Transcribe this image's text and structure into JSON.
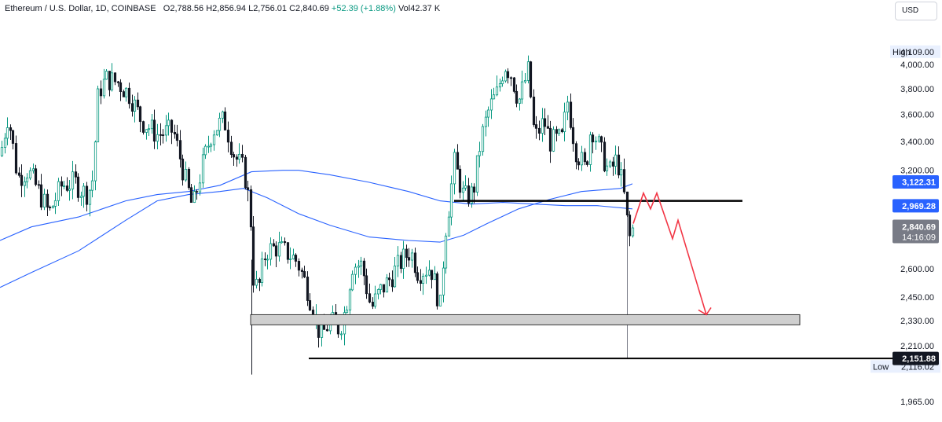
{
  "header": {
    "symbol": "Ethereum / U.S. Dollar, 1D, COINBASE",
    "o_label": "O",
    "o_value": "2,788.56",
    "h_label": "H",
    "h_value": "2,856.94",
    "l_label": "L",
    "l_value": "2,756.01",
    "c_label": "C",
    "c_value": "2,840.69",
    "change": "+52.39 (+1.88%)",
    "vol_label": "Vol",
    "vol_value": "42.37 K"
  },
  "currency_button": "USD",
  "price_axis": {
    "ticks": [
      "4,000.00",
      "3,800.00",
      "3,600.00",
      "3,400.00",
      "3,200.00",
      "2,600.00",
      "2,450.00",
      "2,330.00",
      "2,210.00",
      "1,965.00"
    ],
    "tick_values": [
      4000,
      3800,
      3600,
      3400,
      3200,
      2600,
      2450,
      2330,
      2210,
      1965
    ],
    "high_label": "High",
    "high_value": "4,109.00",
    "low_label": "Low",
    "low_value": "2,116.02",
    "ma_fast_tag": "3,122.31",
    "ma_slow_tag": "2,969.28",
    "last_price": "2,840.69",
    "countdown": "14:16:09",
    "support_line_tag": "2,151.88"
  },
  "colors": {
    "up": "#089981",
    "down": "#131722",
    "ma": "#2962ff",
    "zone_fill": "#cfcfcf",
    "projection": "#f23645",
    "last_tag": "#787b86",
    "tag_blue": "#2962ff"
  },
  "chart_data": {
    "type": "candlestick",
    "symbol": "ETHUSD",
    "interval": "1D",
    "ylim": [
      1950,
      4150
    ],
    "scale": "log",
    "last": {
      "open": 2788.56,
      "high": 2856.94,
      "low": 2756.01,
      "close": 2840.69
    },
    "series_high": 4109.0,
    "series_low": 2116.02,
    "overlays": [
      {
        "name": "",
        "type": "moving-average",
        "last": 3122.31
      },
      {
        "name": "",
        "type": "moving-average",
        "last": 2969.28
      }
    ],
    "annotations": [
      {
        "type": "horizontal-line",
        "price": 3000
      },
      {
        "type": "horizontal-line",
        "price": 2151.88
      },
      {
        "type": "zone",
        "from": 2310,
        "to": 2360
      },
      {
        "type": "projection-path",
        "prices": [
          2860,
          3050,
          2950,
          3050,
          2770,
          2880,
          2360
        ]
      }
    ]
  }
}
